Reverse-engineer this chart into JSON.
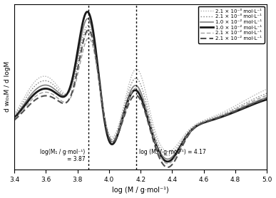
{
  "xlim": [
    3.4,
    5.0
  ],
  "xlabel": "log (M / g·mol⁻¹)",
  "ylabel": "d wₗ₀ₛM / d logM",
  "vline1": 3.87,
  "vline2": 4.17,
  "legend_labels": [
    "2.1 × 10⁻³ mol·L⁻¹",
    "2.1 × 10⁻³ mol·L⁻¹",
    "1.0 × 10⁻² mol·L⁻¹",
    "1.0 × 10⁻² mol·L⁻¹",
    "2.1 × 10⁻² mol·L⁻¹",
    "2.1 × 10⁻² mol·L⁻¹"
  ],
  "line_styles": [
    "dotted",
    "dotted",
    "solid",
    "solid",
    "dashed",
    "dashed"
  ],
  "line_colors": [
    "#b0b0b0",
    "#909090",
    "#808080",
    "#1a1a1a",
    "#a0a0a0",
    "#505050"
  ],
  "line_widths": [
    0.9,
    1.0,
    1.2,
    2.0,
    1.0,
    1.5
  ],
  "background_color": "#ffffff"
}
